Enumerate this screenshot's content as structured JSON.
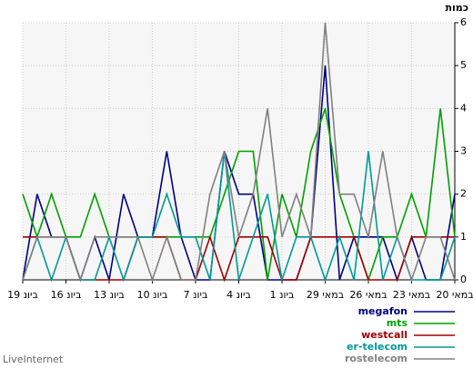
{
  "chart_data": {
    "type": "line",
    "y_label": "כמות",
    "categories": [
      "19 ביונ",
      null,
      null,
      "16 ביונ",
      null,
      null,
      "13 ביונ",
      null,
      null,
      "10 ביונ",
      null,
      null,
      "7 ביונ",
      null,
      null,
      "4 ביונ",
      null,
      null,
      "1 ביונ",
      null,
      null,
      "29 במאי",
      null,
      null,
      "26 במאי",
      null,
      null,
      "23 במאי",
      null,
      null,
      "20 במאי"
    ],
    "series": [
      {
        "name": "megafon",
        "color": "#000080",
        "values": [
          0,
          2,
          1,
          1,
          0,
          1,
          0,
          2,
          1,
          1,
          3,
          1,
          0,
          0,
          3,
          2,
          2,
          0,
          0,
          0,
          1,
          5,
          0,
          1,
          1,
          1,
          0,
          1,
          0,
          0,
          2
        ]
      },
      {
        "name": "mts",
        "color": "#00a000",
        "values": [
          2,
          1,
          2,
          1,
          1,
          2,
          1,
          1,
          1,
          1,
          1,
          1,
          1,
          1,
          2,
          3,
          3,
          0,
          2,
          1,
          3,
          4,
          2,
          1,
          0,
          1,
          1,
          2,
          1,
          4,
          1
        ]
      },
      {
        "name": "westcall",
        "color": "#a00000",
        "values": [
          1,
          1,
          1,
          1,
          0,
          0,
          0,
          0,
          1,
          1,
          1,
          0,
          0,
          1,
          0,
          1,
          1,
          1,
          0,
          0,
          1,
          1,
          1,
          1,
          0,
          0,
          0,
          1,
          1,
          1,
          1
        ]
      },
      {
        "name": "er-telecom",
        "color": "#009999",
        "values": [
          0,
          1,
          0,
          1,
          0,
          0,
          1,
          0,
          1,
          1,
          2,
          1,
          1,
          0,
          3,
          0,
          1,
          2,
          0,
          1,
          1,
          0,
          1,
          0,
          3,
          0,
          1,
          0,
          0,
          0,
          1
        ]
      },
      {
        "name": "rostelecom",
        "color": "#808080",
        "values": [
          0,
          1,
          1,
          1,
          0,
          1,
          1,
          1,
          1,
          0,
          1,
          0,
          0,
          2,
          3,
          1,
          2,
          4,
          1,
          2,
          1,
          6,
          2,
          2,
          1,
          3,
          1,
          0,
          1,
          1,
          0
        ]
      }
    ],
    "ylim": [
      0,
      6
    ],
    "yticks": [
      0,
      1,
      2,
      3,
      4,
      5,
      6
    ],
    "grid": true,
    "annotations": [
      "LiveInternet"
    ]
  }
}
